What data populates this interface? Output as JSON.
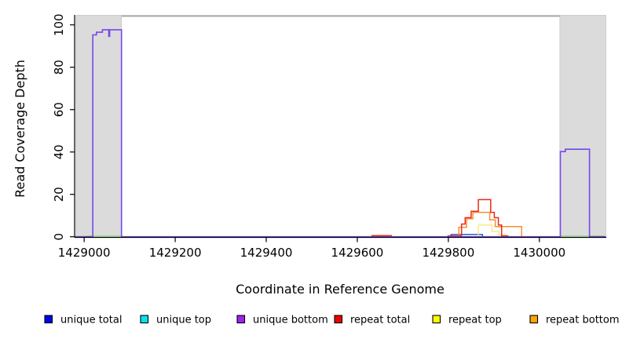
{
  "chart_data": {
    "type": "line",
    "title": "",
    "xlabel": "Coordinate in Reference Genome",
    "ylabel": "Read Coverage Depth",
    "xlim": [
      1428979,
      1430147
    ],
    "ylim": [
      0,
      105
    ],
    "x_ticks": [
      1429000,
      1429200,
      1429400,
      1429600,
      1429800,
      1430000
    ],
    "y_ticks": [
      0,
      20,
      40,
      60,
      80,
      100
    ],
    "grid": false,
    "legend_position": "bottom",
    "background_color": "#ffffff",
    "axis_color": "#000000",
    "shaded_regions": [
      {
        "name": "repeat-region-left",
        "x0": 1428982,
        "x1": 1429082,
        "fill": "#DBDBDB",
        "stroke": "#C6C6C6"
      },
      {
        "name": "repeat-region-right",
        "x0": 1430045,
        "x1": 1430146,
        "fill": "#DBDBDB",
        "stroke": "#C6C6C6"
      }
    ],
    "boundary_line": {
      "x0": 1429082,
      "x1": 1430045,
      "depth": 104.2,
      "color": "#A5A5A5"
    },
    "annotations": [
      {
        "name": "green-baseline-left",
        "x0": 1429005,
        "x1": 1429082,
        "depth": 0.35,
        "color": "#9FD89B"
      },
      {
        "name": "green-baseline-right",
        "x0": 1430046,
        "x1": 1430144,
        "depth": 0.35,
        "color": "#9FD89B"
      }
    ],
    "series": [
      {
        "name": "unique total",
        "legend_color": "#0000EE",
        "line_color": "#2E5CE6",
        "width": 1.5,
        "segments": [
          [
            [
              1429806,
              0
            ],
            [
              1429806,
              1.1
            ],
            [
              1429875,
              1.1
            ],
            [
              1429875,
              0
            ]
          ]
        ]
      },
      {
        "name": "unique top",
        "legend_color": "#00E5EE",
        "line_color": "#00E5EE",
        "width": 1.2,
        "segments": []
      },
      {
        "name": "unique bottom",
        "legend_color": "#A020F0",
        "line_color": "#7747EC",
        "width": 1.6,
        "segments": [
          [
            [
              1428979,
              0
            ],
            [
              1429019,
              0
            ],
            [
              1429019,
              95.3
            ],
            [
              1429027,
              95.3
            ],
            [
              1429027,
              96.5
            ],
            [
              1429040,
              96.5
            ],
            [
              1429040,
              97.7
            ],
            [
              1429054,
              97.7
            ],
            [
              1429054,
              94.6
            ],
            [
              1429056,
              94.6
            ],
            [
              1429056,
              97.7
            ],
            [
              1429082,
              97.7
            ],
            [
              1429082,
              0
            ],
            [
              1430046,
              0
            ],
            [
              1430046,
              40.2
            ],
            [
              1430057,
              40.2
            ],
            [
              1430057,
              41.3
            ],
            [
              1430110,
              41.3
            ],
            [
              1430110,
              0
            ],
            [
              1430146,
              0
            ]
          ]
        ]
      },
      {
        "name": "repeat total",
        "legend_color": "#EE0000",
        "line_color": "#EC2917",
        "width": 1.5,
        "segments": [
          [
            [
              1429631,
              0.5
            ],
            [
              1429676,
              0.5
            ]
          ],
          [
            [
              1429798,
              0.4
            ],
            [
              1429829,
              0.4
            ],
            [
              1429829,
              6
            ],
            [
              1429837,
              6
            ],
            [
              1429837,
              9
            ],
            [
              1429850,
              9
            ],
            [
              1429850,
              12
            ],
            [
              1429866,
              12
            ],
            [
              1429866,
              17.5
            ],
            [
              1429893,
              17.5
            ],
            [
              1429893,
              11.5
            ],
            [
              1429901,
              11.5
            ],
            [
              1429901,
              9
            ],
            [
              1429910,
              9
            ],
            [
              1429910,
              5.5
            ],
            [
              1429917,
              5.5
            ],
            [
              1429917,
              0.4
            ],
            [
              1429932,
              0.4
            ]
          ]
        ]
      },
      {
        "name": "repeat top",
        "legend_color": "#FFFF00",
        "line_color": "#F6E97D",
        "width": 1.4,
        "segments": [
          [
            [
              1429866,
              0
            ],
            [
              1429866,
              5.5
            ],
            [
              1429896,
              5.5
            ],
            [
              1429896,
              2.5
            ],
            [
              1429911,
              2.5
            ],
            [
              1429911,
              1
            ],
            [
              1429926,
              1
            ],
            [
              1429926,
              0
            ]
          ]
        ]
      },
      {
        "name": "repeat bottom",
        "legend_color": "#FFA500",
        "line_color": "#F59133",
        "width": 1.5,
        "segments": [
          [
            [
              1429823,
              0
            ],
            [
              1429823,
              4.5
            ],
            [
              1429840,
              4.5
            ],
            [
              1429840,
              8.5
            ],
            [
              1429854,
              8.5
            ],
            [
              1429854,
              11.5
            ],
            [
              1429891,
              11.5
            ],
            [
              1429891,
              8
            ],
            [
              1429903,
              8
            ],
            [
              1429903,
              4.8
            ],
            [
              1429961,
              4.8
            ],
            [
              1429961,
              0
            ]
          ]
        ]
      }
    ]
  }
}
